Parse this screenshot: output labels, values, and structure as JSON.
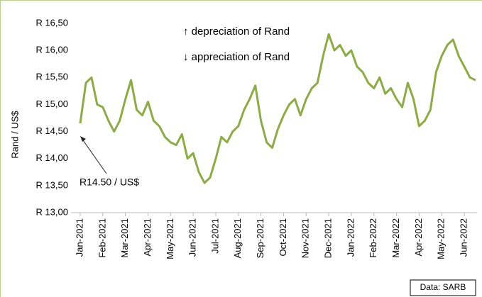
{
  "chart_data": {
    "type": "line",
    "ylabel": "Rand / US$",
    "annotations": [
      "↑ depreciation of Rand",
      "↓ appreciation of Rand",
      "R14.50 / US$"
    ],
    "source": "Data: SARB",
    "categories": [
      "Jan-2021",
      null,
      null,
      null,
      "Feb-2021",
      null,
      null,
      null,
      "Mar-2021",
      null,
      null,
      null,
      "Apr-2021",
      null,
      null,
      null,
      "May-2021",
      null,
      null,
      null,
      "Jun-2021",
      null,
      null,
      null,
      "Jul-2021",
      null,
      null,
      null,
      "Aug-2021",
      null,
      null,
      null,
      "Sep-2021",
      null,
      null,
      null,
      "Oct-2021",
      null,
      null,
      null,
      "Nov-2021",
      null,
      null,
      null,
      "Dec-2021",
      null,
      null,
      null,
      "Jan-2022",
      null,
      null,
      null,
      "Feb-2022",
      null,
      null,
      null,
      "Mar-2022",
      null,
      null,
      null,
      "Apr-2022",
      null,
      null,
      null,
      "May-2022",
      null,
      null,
      null,
      "Jun-2022",
      null,
      null
    ],
    "series": [
      {
        "name": "Rand / US$",
        "color": "#8aab45",
        "values": [
          14.65,
          15.4,
          15.5,
          15.0,
          14.95,
          14.7,
          14.5,
          14.7,
          15.1,
          15.45,
          14.9,
          14.8,
          15.05,
          14.7,
          14.6,
          14.4,
          14.3,
          14.25,
          14.45,
          14.0,
          14.1,
          13.75,
          13.55,
          13.65,
          14.0,
          14.4,
          14.3,
          14.5,
          14.6,
          14.9,
          15.1,
          15.35,
          14.7,
          14.3,
          14.2,
          14.55,
          14.8,
          15.0,
          15.1,
          14.8,
          15.1,
          15.3,
          15.4,
          15.9,
          16.3,
          16.0,
          16.1,
          15.9,
          16.0,
          15.7,
          15.6,
          15.4,
          15.3,
          15.5,
          15.2,
          15.3,
          15.1,
          14.95,
          15.4,
          15.1,
          14.6,
          14.7,
          14.9,
          15.6,
          15.9,
          16.1,
          16.2,
          15.9,
          15.7,
          15.5,
          15.45
        ]
      }
    ],
    "ylim": [
      13,
      16.5
    ],
    "yticks": [
      {
        "value": 13,
        "label": "R 13,00"
      },
      {
        "value": 13.5,
        "label": "R 13,50"
      },
      {
        "value": 14,
        "label": "R 14,00"
      },
      {
        "value": 14.5,
        "label": "R 14,50"
      },
      {
        "value": 15,
        "label": "R 15,00"
      },
      {
        "value": 15.5,
        "label": "R 15,50"
      },
      {
        "value": 16,
        "label": "R 16,00"
      },
      {
        "value": 16.5,
        "label": "R 16,50"
      }
    ],
    "grid": false
  }
}
